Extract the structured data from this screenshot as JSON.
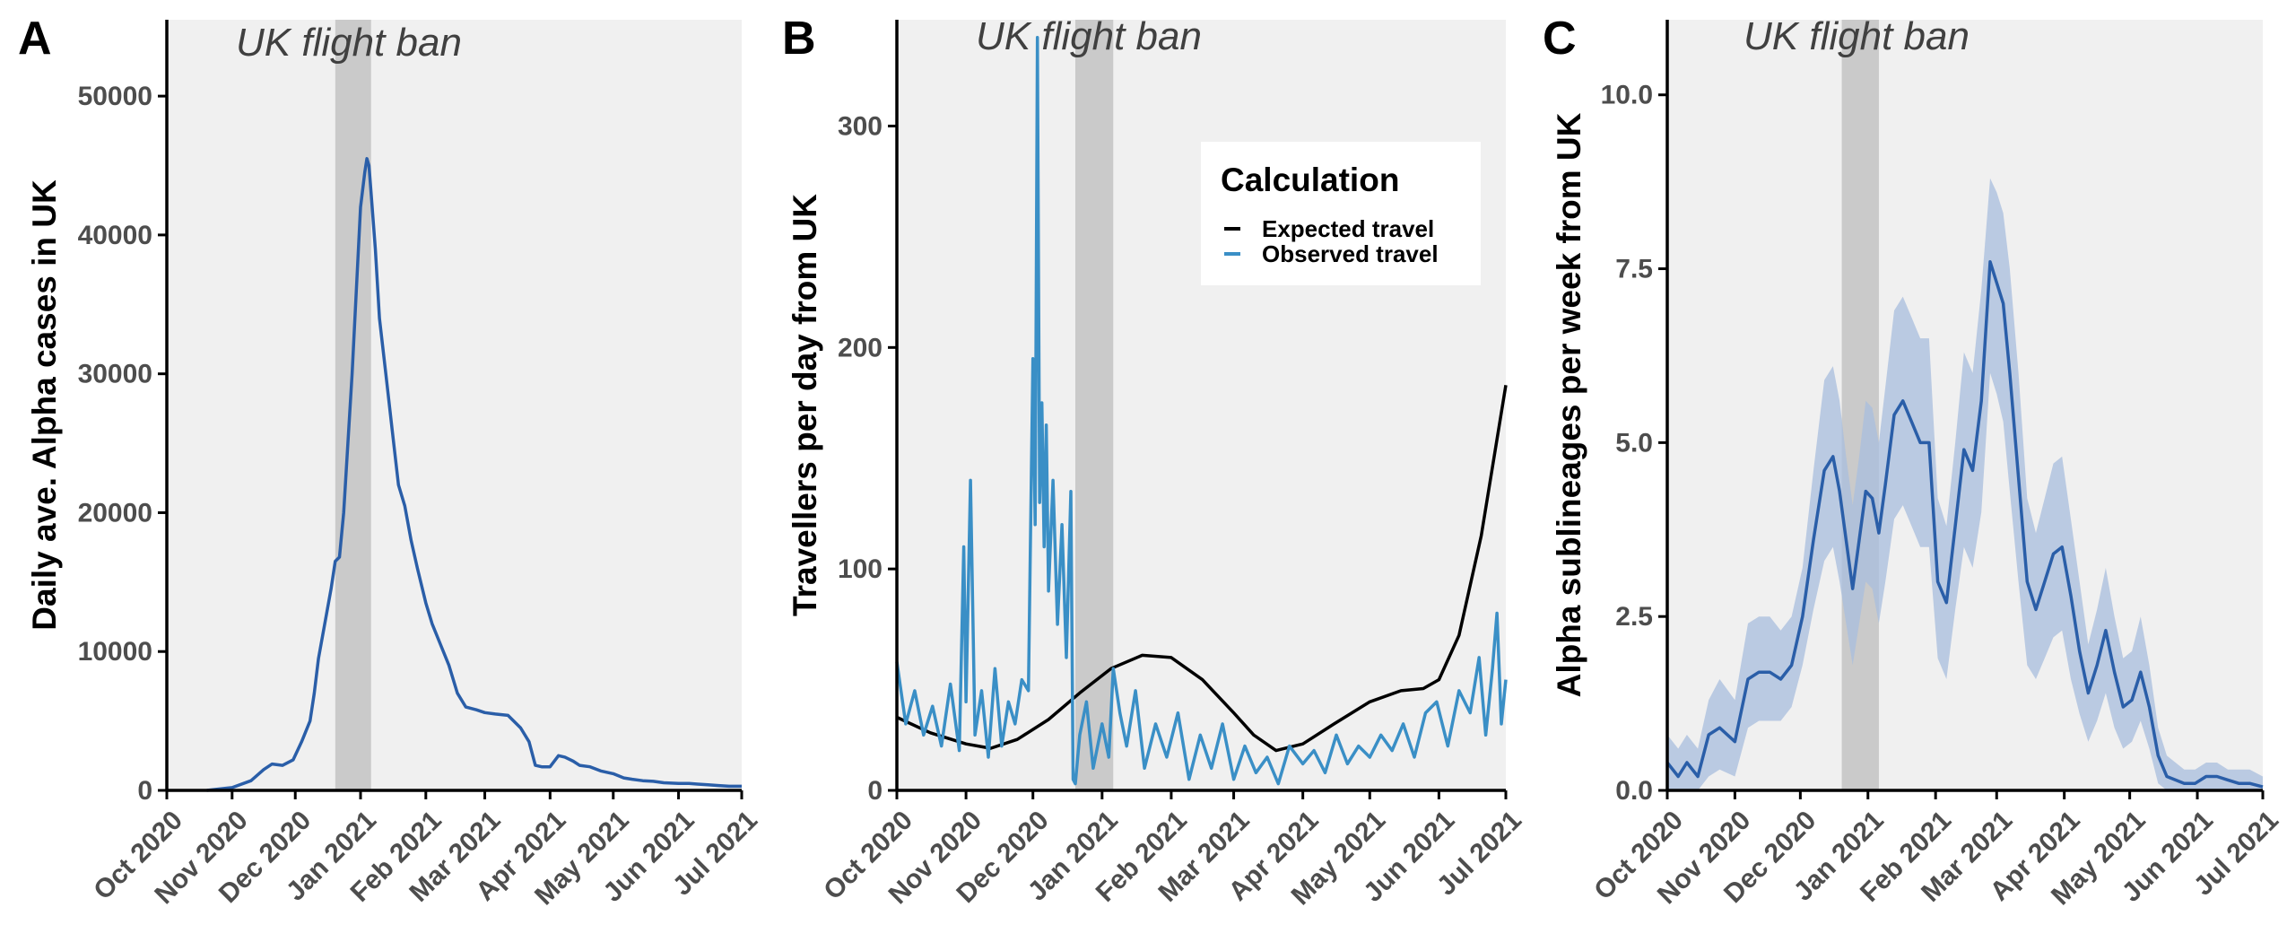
{
  "chart_data": [
    {
      "panel": "A",
      "type": "line",
      "ylabel": "Daily ave. Alpha cases in UK",
      "xlabel": "",
      "annotation": "UK flight ban",
      "ban_period": [
        "2020-12-20",
        "2021-01-06"
      ],
      "xlim": [
        "2020-10-01",
        "2021-07-01"
      ],
      "ylim": [
        0,
        55500
      ],
      "x_ticks": [
        "2020-10-01",
        "2020-11-01",
        "2020-12-01",
        "2021-01-01",
        "2021-02-01",
        "2021-03-01",
        "2021-04-01",
        "2021-05-01",
        "2021-06-01",
        "2021-07-01"
      ],
      "x_tick_labels": [
        "Oct 2020",
        "Nov 2020",
        "Dec 2020",
        "Jan 2021",
        "Feb 2021",
        "Mar 2021",
        "Apr 2021",
        "May 2021",
        "Jun 2021",
        "Jul 2021"
      ],
      "y_ticks": [
        0,
        10000,
        20000,
        30000,
        40000,
        50000
      ],
      "y_tick_labels": [
        "0",
        "10000",
        "20000",
        "30000",
        "40000",
        "50000"
      ],
      "series": [
        {
          "color": "#2a5ea8",
          "x": [
            "2020-10-20",
            "2020-11-01",
            "2020-11-10",
            "2020-11-16",
            "2020-11-20",
            "2020-11-25",
            "2020-11-30",
            "2020-12-04",
            "2020-12-08",
            "2020-12-10",
            "2020-12-12",
            "2020-12-15",
            "2020-12-18",
            "2020-12-20",
            "2020-12-22",
            "2020-12-24",
            "2020-12-26",
            "2020-12-28",
            "2020-12-30",
            "2021-01-01",
            "2021-01-03",
            "2021-01-04",
            "2021-01-05",
            "2021-01-06",
            "2021-01-08",
            "2021-01-10",
            "2021-01-13",
            "2021-01-16",
            "2021-01-19",
            "2021-01-22",
            "2021-01-25",
            "2021-01-28",
            "2021-02-01",
            "2021-02-04",
            "2021-02-08",
            "2021-02-12",
            "2021-02-16",
            "2021-02-20",
            "2021-02-25",
            "2021-03-01",
            "2021-03-06",
            "2021-03-12",
            "2021-03-18",
            "2021-03-22",
            "2021-03-25",
            "2021-03-28",
            "2021-04-01",
            "2021-04-05",
            "2021-04-08",
            "2021-04-12",
            "2021-04-15",
            "2021-04-20",
            "2021-04-25",
            "2021-05-01",
            "2021-05-06",
            "2021-05-10",
            "2021-05-15",
            "2021-05-20",
            "2021-05-25",
            "2021-06-01",
            "2021-06-06",
            "2021-06-10",
            "2021-06-15",
            "2021-06-20",
            "2021-06-25",
            "2021-07-01"
          ],
          "y": [
            0,
            200,
            700,
            1500,
            1900,
            1800,
            2200,
            3500,
            5000,
            7000,
            9500,
            12000,
            14500,
            16500,
            16800,
            20000,
            25000,
            30000,
            36000,
            42000,
            44500,
            45500,
            45000,
            43000,
            39000,
            34000,
            30000,
            26000,
            22000,
            20500,
            18000,
            16000,
            13500,
            12000,
            10500,
            9000,
            7000,
            6000,
            5800,
            5600,
            5500,
            5400,
            4500,
            3500,
            1800,
            1700,
            1700,
            2500,
            2400,
            2100,
            1800,
            1700,
            1400,
            1200,
            900,
            800,
            700,
            650,
            550,
            500,
            500,
            450,
            400,
            350,
            300,
            300
          ]
        }
      ]
    },
    {
      "panel": "B",
      "type": "line",
      "ylabel": "Travellers per day from UK",
      "xlabel": "",
      "annotation": "UK flight ban",
      "ban_period": [
        "2020-12-20",
        "2021-01-06"
      ],
      "xlim": [
        "2020-10-01",
        "2021-07-01"
      ],
      "ylim": [
        0,
        348
      ],
      "x_ticks": [
        "2020-10-01",
        "2020-11-01",
        "2020-12-01",
        "2021-01-01",
        "2021-02-01",
        "2021-03-01",
        "2021-04-01",
        "2021-05-01",
        "2021-06-01",
        "2021-07-01"
      ],
      "x_tick_labels": [
        "Oct 2020",
        "Nov 2020",
        "Dec 2020",
        "Jan 2021",
        "Feb 2021",
        "Mar 2021",
        "Apr 2021",
        "May 2021",
        "Jun 2021",
        "Jul 2021"
      ],
      "y_ticks": [
        0,
        100,
        200,
        300
      ],
      "y_tick_labels": [
        "0",
        "100",
        "200",
        "300"
      ],
      "legend": {
        "title": "Calculation",
        "placement": "top-right",
        "entries": [
          {
            "label": "Expected travel",
            "color": "#000000"
          },
          {
            "label": "Observed travel",
            "color": "#3a8fc6"
          }
        ]
      },
      "series": [
        {
          "name": "Expected travel",
          "color": "#000000",
          "x": [
            "2020-10-01",
            "2020-10-16",
            "2020-11-01",
            "2020-11-12",
            "2020-11-24",
            "2020-12-08",
            "2020-12-22",
            "2021-01-05",
            "2021-01-19",
            "2021-02-01",
            "2021-02-15",
            "2021-03-01",
            "2021-03-10",
            "2021-03-20",
            "2021-04-01",
            "2021-04-15",
            "2021-05-01",
            "2021-05-15",
            "2021-05-25",
            "2021-06-01",
            "2021-06-10",
            "2021-06-20",
            "2021-07-01"
          ],
          "y": [
            33,
            26,
            21,
            19,
            23,
            32,
            44,
            55,
            61,
            60,
            50,
            35,
            25,
            18,
            21,
            30,
            40,
            45,
            46,
            50,
            70,
            115,
            183
          ]
        },
        {
          "name": "Observed travel",
          "color": "#3a8fc6",
          "x": [
            "2020-10-01",
            "2020-10-05",
            "2020-10-09",
            "2020-10-13",
            "2020-10-17",
            "2020-10-21",
            "2020-10-25",
            "2020-10-29",
            "2020-10-31",
            "2020-11-01",
            "2020-11-03",
            "2020-11-05",
            "2020-11-08",
            "2020-11-11",
            "2020-11-14",
            "2020-11-17",
            "2020-11-20",
            "2020-11-23",
            "2020-11-26",
            "2020-11-29",
            "2020-12-01",
            "2020-12-02",
            "2020-12-03",
            "2020-12-04",
            "2020-12-05",
            "2020-12-06",
            "2020-12-07",
            "2020-12-08",
            "2020-12-10",
            "2020-12-12",
            "2020-12-14",
            "2020-12-16",
            "2020-12-18",
            "2020-12-19",
            "2020-12-20",
            "2020-12-22",
            "2020-12-25",
            "2020-12-28",
            "2021-01-01",
            "2021-01-04",
            "2021-01-06",
            "2021-01-09",
            "2021-01-12",
            "2021-01-16",
            "2021-01-20",
            "2021-01-25",
            "2021-01-30",
            "2021-02-04",
            "2021-02-09",
            "2021-02-14",
            "2021-02-19",
            "2021-02-24",
            "2021-03-01",
            "2021-03-06",
            "2021-03-11",
            "2021-03-16",
            "2021-03-21",
            "2021-03-26",
            "2021-04-01",
            "2021-04-06",
            "2021-04-11",
            "2021-04-16",
            "2021-04-21",
            "2021-04-26",
            "2021-05-01",
            "2021-05-06",
            "2021-05-11",
            "2021-05-16",
            "2021-05-21",
            "2021-05-26",
            "2021-05-31",
            "2021-06-05",
            "2021-06-10",
            "2021-06-15",
            "2021-06-19",
            "2021-06-22",
            "2021-06-25",
            "2021-06-27",
            "2021-06-29",
            "2021-07-01"
          ],
          "y": [
            58,
            30,
            45,
            25,
            38,
            20,
            48,
            18,
            110,
            40,
            140,
            25,
            45,
            15,
            55,
            20,
            40,
            30,
            50,
            45,
            195,
            120,
            340,
            130,
            175,
            110,
            165,
            90,
            140,
            75,
            120,
            60,
            135,
            5,
            3,
            25,
            40,
            10,
            30,
            15,
            55,
            35,
            20,
            45,
            10,
            30,
            15,
            35,
            5,
            25,
            10,
            30,
            5,
            20,
            8,
            15,
            3,
            20,
            12,
            18,
            8,
            25,
            12,
            20,
            15,
            25,
            18,
            30,
            15,
            35,
            40,
            20,
            45,
            35,
            60,
            25,
            55,
            80,
            30,
            50
          ]
        }
      ]
    },
    {
      "panel": "C",
      "type": "line",
      "ylabel": "Alpha sublineages per week from UK",
      "xlabel": "",
      "annotation": "UK flight ban",
      "ban_period": [
        "2020-12-20",
        "2021-01-06"
      ],
      "xlim": [
        "2020-10-01",
        "2021-07-01"
      ],
      "ylim": [
        0,
        11.08
      ],
      "x_ticks": [
        "2020-10-01",
        "2020-11-01",
        "2020-12-01",
        "2021-01-01",
        "2021-02-01",
        "2021-03-01",
        "2021-04-01",
        "2021-05-01",
        "2021-06-01",
        "2021-07-01"
      ],
      "x_tick_labels": [
        "Oct 2020",
        "Nov 2020",
        "Dec 2020",
        "Jan 2021",
        "Feb 2021",
        "Mar 2021",
        "Apr 2021",
        "May 2021",
        "Jun 2021",
        "Jul 2021"
      ],
      "y_ticks": [
        0,
        2.5,
        5,
        7.5,
        10
      ],
      "y_tick_labels": [
        "0.0",
        "2.5",
        "5.0",
        "7.5",
        "10.0"
      ],
      "series": [
        {
          "color": "#2a5ea8",
          "band_color": "#a8bddd",
          "x": [
            "2020-10-01",
            "2020-10-06",
            "2020-10-10",
            "2020-10-15",
            "2020-10-20",
            "2020-10-25",
            "2020-11-01",
            "2020-11-07",
            "2020-11-12",
            "2020-11-17",
            "2020-11-22",
            "2020-11-27",
            "2020-12-02",
            "2020-12-07",
            "2020-12-12",
            "2020-12-16",
            "2020-12-19",
            "2020-12-22",
            "2020-12-25",
            "2020-12-28",
            "2020-12-31",
            "2021-01-03",
            "2021-01-06",
            "2021-01-09",
            "2021-01-13",
            "2021-01-17",
            "2021-01-21",
            "2021-01-25",
            "2021-01-29",
            "2021-02-02",
            "2021-02-06",
            "2021-02-10",
            "2021-02-14",
            "2021-02-18",
            "2021-02-22",
            "2021-02-26",
            "2021-03-01",
            "2021-03-04",
            "2021-03-07",
            "2021-03-11",
            "2021-03-15",
            "2021-03-19",
            "2021-03-23",
            "2021-03-27",
            "2021-03-31",
            "2021-04-04",
            "2021-04-08",
            "2021-04-12",
            "2021-04-16",
            "2021-04-20",
            "2021-04-24",
            "2021-04-28",
            "2021-05-02",
            "2021-05-06",
            "2021-05-10",
            "2021-05-14",
            "2021-05-18",
            "2021-05-22",
            "2021-05-26",
            "2021-05-31",
            "2021-06-05",
            "2021-06-10",
            "2021-06-15",
            "2021-06-20",
            "2021-06-25",
            "2021-07-01"
          ],
          "y": [
            0.4,
            0.2,
            0.4,
            0.2,
            0.8,
            0.9,
            0.7,
            1.6,
            1.7,
            1.7,
            1.6,
            1.8,
            2.5,
            3.6,
            4.6,
            4.8,
            4.3,
            3.6,
            2.9,
            3.6,
            4.3,
            4.2,
            3.7,
            4.4,
            5.4,
            5.6,
            5.3,
            5.0,
            5.0,
            3.0,
            2.7,
            3.8,
            4.9,
            4.6,
            5.6,
            7.6,
            7.3,
            7.0,
            6.0,
            4.5,
            3.0,
            2.6,
            3.0,
            3.4,
            3.5,
            2.8,
            2.0,
            1.4,
            1.8,
            2.3,
            1.7,
            1.2,
            1.3,
            1.7,
            1.2,
            0.5,
            0.2,
            0.15,
            0.1,
            0.1,
            0.2,
            0.2,
            0.15,
            0.1,
            0.1,
            0.05
          ],
          "lower": [
            0.0,
            0.0,
            0.0,
            0.0,
            0.2,
            0.3,
            0.2,
            0.9,
            1.0,
            1.0,
            1.0,
            1.2,
            1.8,
            2.6,
            3.3,
            3.5,
            3.0,
            2.4,
            1.8,
            2.4,
            3.0,
            2.9,
            2.4,
            3.0,
            3.9,
            4.1,
            3.8,
            3.5,
            3.5,
            1.9,
            1.6,
            2.6,
            3.5,
            3.2,
            4.0,
            6.0,
            5.7,
            5.3,
            4.3,
            3.0,
            1.8,
            1.6,
            1.9,
            2.2,
            2.3,
            1.6,
            1.1,
            0.7,
            1.0,
            1.4,
            0.9,
            0.6,
            0.7,
            1.0,
            0.6,
            0.1,
            0.0,
            0.0,
            0.0,
            0.0,
            0.0,
            0.0,
            0.0,
            0.0,
            0.0,
            0.0
          ],
          "upper": [
            0.8,
            0.6,
            0.8,
            0.6,
            1.3,
            1.6,
            1.3,
            2.4,
            2.5,
            2.5,
            2.3,
            2.5,
            3.2,
            4.6,
            5.9,
            6.1,
            5.6,
            4.8,
            4.1,
            4.8,
            5.6,
            5.5,
            5.0,
            5.8,
            6.9,
            7.1,
            6.8,
            6.5,
            6.5,
            4.2,
            3.8,
            5.0,
            6.3,
            6.0,
            7.2,
            8.8,
            8.6,
            8.3,
            7.5,
            6.0,
            4.2,
            3.7,
            4.2,
            4.7,
            4.8,
            3.9,
            3.0,
            2.1,
            2.6,
            3.2,
            2.5,
            1.9,
            2.0,
            2.5,
            1.8,
            0.9,
            0.5,
            0.4,
            0.3,
            0.3,
            0.4,
            0.4,
            0.3,
            0.3,
            0.3,
            0.2
          ]
        }
      ]
    }
  ]
}
